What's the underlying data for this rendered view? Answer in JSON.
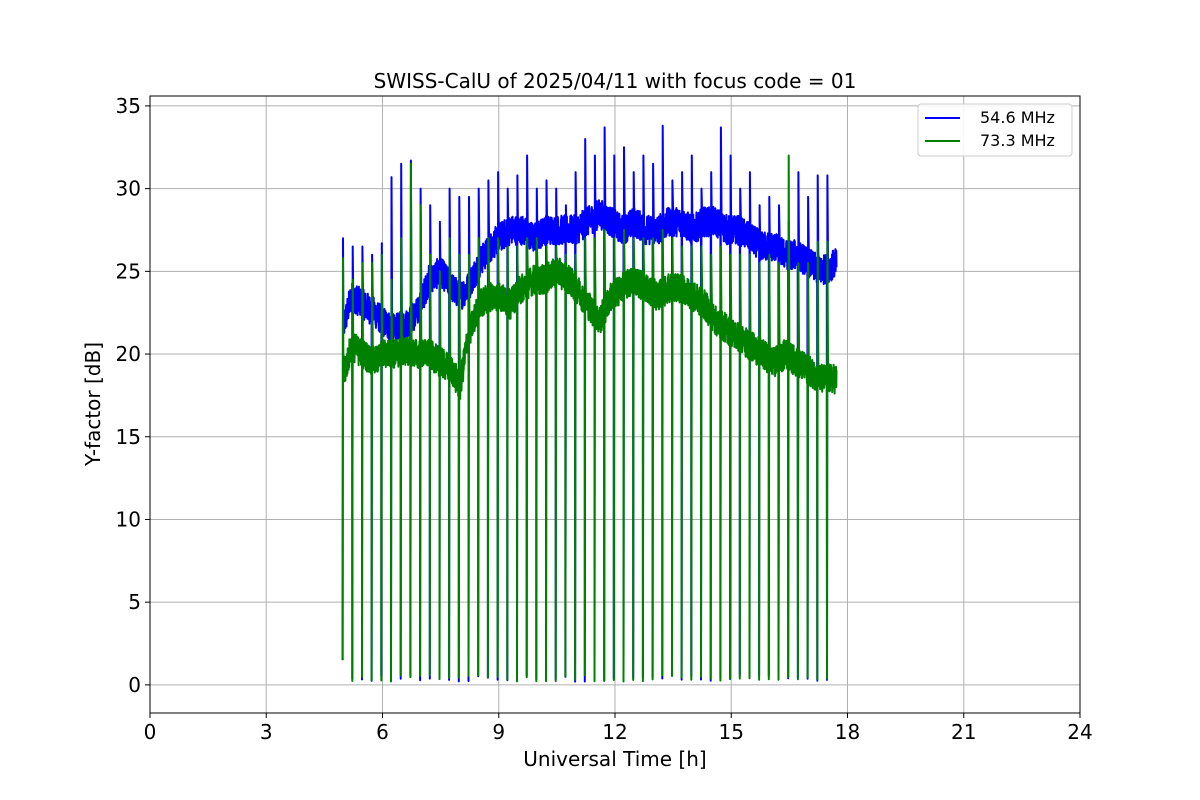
{
  "chart_data": {
    "type": "line",
    "title": "SWISS-CalU of 2025/04/11 with focus code = 01",
    "xlabel": "Universal Time [h]",
    "ylabel": "Y-factor [dB]",
    "xlim": [
      0,
      24
    ],
    "ylim": [
      -1.7,
      35.6
    ],
    "xticks": [
      0,
      3,
      6,
      9,
      12,
      15,
      18,
      21,
      24
    ],
    "yticks": [
      0,
      5,
      10,
      15,
      20,
      25,
      30,
      35
    ],
    "grid": true,
    "legend_position": "top-right",
    "time_range": [
      4.97,
      17.72
    ],
    "calibration_drop_times": [
      5.22,
      5.47,
      5.72,
      5.97,
      6.22,
      6.47,
      6.72,
      6.97,
      7.22,
      7.47,
      7.72,
      7.97,
      8.22,
      8.47,
      8.72,
      8.97,
      9.22,
      9.47,
      9.72,
      9.97,
      10.22,
      10.47,
      10.72,
      10.97,
      11.22,
      11.47,
      11.72,
      11.97,
      12.22,
      12.47,
      12.72,
      12.97,
      13.22,
      13.47,
      13.72,
      13.97,
      14.22,
      14.47,
      14.72,
      14.97,
      15.22,
      15.47,
      15.72,
      15.97,
      16.22,
      16.47,
      16.72,
      16.97,
      17.22,
      17.47
    ],
    "series": [
      {
        "name": "54.6 MHz",
        "color": "#0000ff",
        "x": [
          4.97,
          5.2,
          5.5,
          5.8,
          6.0,
          6.3,
          6.6,
          6.9,
          7.2,
          7.5,
          7.8,
          8.0,
          8.2,
          8.5,
          8.8,
          9.0,
          9.3,
          9.6,
          9.9,
          10.2,
          10.5,
          10.8,
          11.0,
          11.3,
          11.6,
          11.9,
          12.2,
          12.5,
          12.8,
          13.1,
          13.4,
          13.7,
          14.0,
          14.3,
          14.6,
          14.9,
          15.2,
          15.5,
          15.8,
          16.1,
          16.4,
          16.7,
          17.0,
          17.3,
          17.72
        ],
        "values": [
          21.5,
          23.5,
          23.0,
          22.5,
          22.0,
          21.5,
          21.8,
          22.5,
          24.5,
          25.0,
          24.0,
          23.5,
          24.0,
          25.5,
          26.5,
          27.0,
          27.5,
          27.5,
          27.0,
          27.5,
          27.5,
          27.5,
          27.5,
          28.0,
          28.5,
          28.0,
          27.5,
          28.0,
          27.5,
          27.5,
          28.0,
          28.0,
          27.5,
          28.0,
          28.0,
          27.5,
          27.5,
          27.0,
          26.5,
          26.5,
          26.0,
          26.0,
          25.5,
          25.0,
          25.5
        ],
        "spike_peaks": [
          28.0,
          26.5,
          26.5,
          26.0,
          26.7,
          30.7,
          31.5,
          31.7,
          30.0,
          29.0,
          28.0,
          30.0,
          29.5,
          29.5,
          30.0,
          30.5,
          31.0,
          30.0,
          30.8,
          32.0,
          30.0,
          30.5,
          30.0,
          29.0,
          31.0,
          33.0,
          32.0,
          33.7,
          32.0,
          32.5,
          31.0,
          32.0,
          31.5,
          33.8,
          30.5,
          31.0,
          32.0,
          30.0,
          31.0,
          33.7,
          32.0,
          30.0,
          31.0,
          29.0,
          29.5,
          29.0,
          28.0,
          31.0,
          29.5,
          30.8
        ]
      },
      {
        "name": "73.3 MHz",
        "color": "#008000",
        "x": [
          4.97,
          5.2,
          5.5,
          5.8,
          6.0,
          6.3,
          6.6,
          6.9,
          7.2,
          7.5,
          7.8,
          8.0,
          8.2,
          8.5,
          8.8,
          9.0,
          9.3,
          9.6,
          9.9,
          10.2,
          10.5,
          10.8,
          11.0,
          11.3,
          11.6,
          11.9,
          12.2,
          12.5,
          12.8,
          13.1,
          13.4,
          13.7,
          14.0,
          14.3,
          14.6,
          14.9,
          15.2,
          15.5,
          15.8,
          16.1,
          16.4,
          16.7,
          17.0,
          17.3,
          17.72
        ],
        "values": [
          18.5,
          20.5,
          20.0,
          19.5,
          20.0,
          20.0,
          20.2,
          20.0,
          20.0,
          19.5,
          19.0,
          18.0,
          21.0,
          23.0,
          23.5,
          23.5,
          23.0,
          24.0,
          24.5,
          24.5,
          25.0,
          24.5,
          24.0,
          23.0,
          22.0,
          23.5,
          24.0,
          24.5,
          24.0,
          23.5,
          24.0,
          24.0,
          23.5,
          23.0,
          22.0,
          21.5,
          21.0,
          20.5,
          20.0,
          19.5,
          20.0,
          19.5,
          19.0,
          18.5,
          18.5
        ],
        "spike_peaks": [
          26.8,
          24.5,
          25.5,
          25.5,
          26.0,
          24.5,
          27.0,
          31.5,
          29.0,
          26.0,
          25.0,
          27.0,
          26.0,
          26.0,
          27.0,
          27.0,
          27.0,
          26.5,
          26.5,
          27.0,
          27.0,
          26.5,
          26.5,
          26.0,
          26.0,
          27.0,
          27.0,
          27.5,
          27.0,
          27.5,
          27.0,
          27.0,
          27.0,
          27.5,
          27.0,
          26.5,
          26.5,
          26.5,
          26.0,
          26.5,
          26.0,
          26.0,
          26.0,
          25.5,
          26.0,
          25.5,
          32.0,
          25.5,
          25.5,
          26.8
        ]
      }
    ]
  }
}
